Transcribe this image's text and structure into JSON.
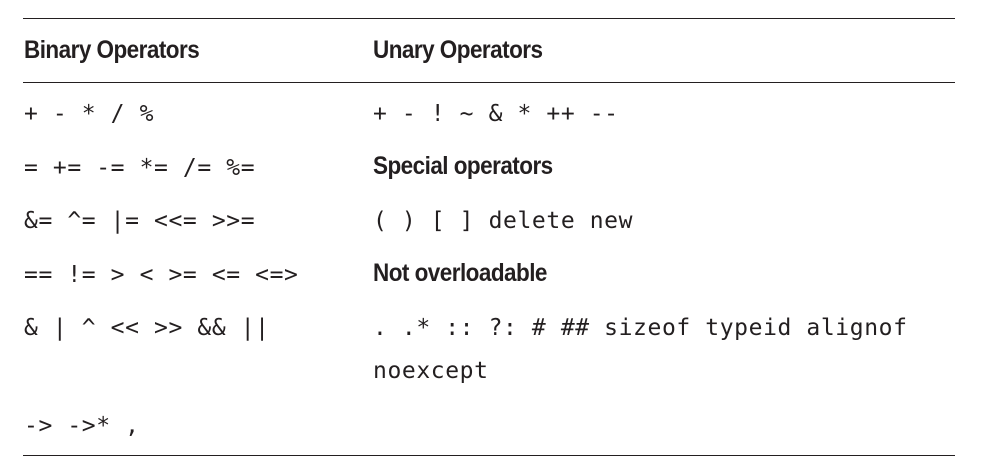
{
  "table": {
    "headers": {
      "binary": "Binary Operators",
      "unary": "Unary Operators"
    },
    "binary_rows": [
      "+ - * / %",
      "= += -= *= /= %=",
      "&= ^= |= <<= >>=",
      "== != > < >= <= <=>",
      "& | ^ << >> && ||",
      "-> ->* ,"
    ],
    "unary_column": {
      "unary_ops": "+ - ! ~ & * ++ --",
      "special_heading": "Special operators",
      "special_ops": "( ) [ ] delete new",
      "not_overloadable_heading": "Not overloadable",
      "not_overloadable_line1": ". .* :: ?: # ## sizeof typeid alignof",
      "not_overloadable_line2": "noexcept"
    }
  }
}
